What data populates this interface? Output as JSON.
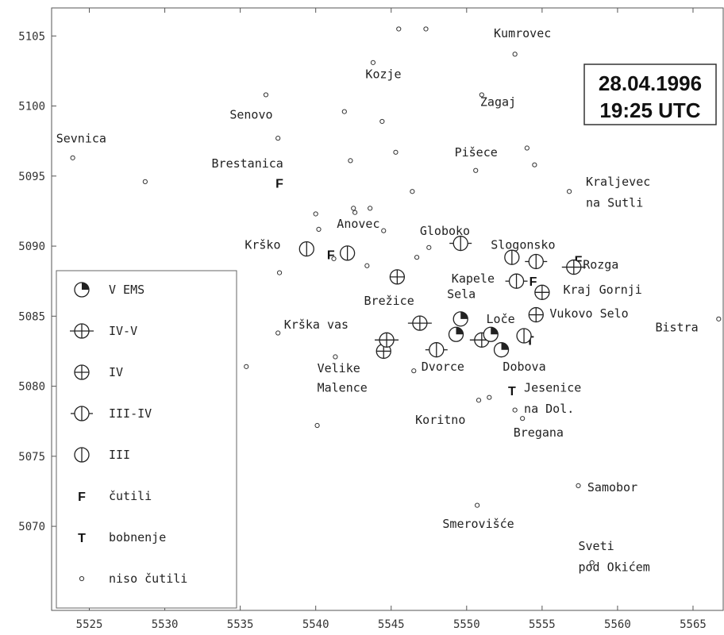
{
  "date_box": {
    "line1": "28.04.1996",
    "line2": "19:25 UTC"
  },
  "axes": {
    "x_range": [
      5522.5,
      5567
    ],
    "y_range": [
      5064,
      5107
    ],
    "x_ticks": [
      "5525",
      "5530",
      "5535",
      "5540",
      "5545",
      "5550",
      "5555",
      "5560",
      "5565"
    ],
    "y_ticks": [
      "5070",
      "5075",
      "5080",
      "5085",
      "5090",
      "5095",
      "5100",
      "5105"
    ]
  },
  "legend": {
    "items": [
      {
        "symbol": "V",
        "label": "V  EMS"
      },
      {
        "symbol": "IV-V",
        "label": "IV-V"
      },
      {
        "symbol": "IV",
        "label": "IV"
      },
      {
        "symbol": "III-IV",
        "label": "III-IV"
      },
      {
        "symbol": "III",
        "label": "III"
      },
      {
        "symbol": "F",
        "label": "čutili"
      },
      {
        "symbol": "T",
        "label": "bobnenje"
      },
      {
        "symbol": "N",
        "label": "niso čutili"
      }
    ]
  },
  "place_labels": [
    {
      "text": "Kumrovec",
      "x": 5551.8,
      "y": 5104.9
    },
    {
      "text": "Kozje",
      "x": 5543.3,
      "y": 5102.0
    },
    {
      "text": "Zagaj",
      "x": 5550.9,
      "y": 5100.0
    },
    {
      "text": "Senovo",
      "x": 5534.3,
      "y": 5099.1
    },
    {
      "text": "Sevnica",
      "x": 5522.8,
      "y": 5097.4
    },
    {
      "text": "Pišece",
      "x": 5549.2,
      "y": 5096.4
    },
    {
      "text": "Brestanica",
      "x": 5533.1,
      "y": 5095.6
    },
    {
      "text": "Kraljevec",
      "x": 5557.9,
      "y": 5094.3
    },
    {
      "text": "na Sutli",
      "x": 5557.9,
      "y": 5092.8
    },
    {
      "text": "Anovec",
      "x": 5541.4,
      "y": 5091.3
    },
    {
      "text": "Globoko",
      "x": 5546.9,
      "y": 5090.8
    },
    {
      "text": "Krško",
      "x": 5535.3,
      "y": 5089.8
    },
    {
      "text": "Slogonsko",
      "x": 5551.6,
      "y": 5089.8
    },
    {
      "text": "Rozga",
      "x": 5557.7,
      "y": 5088.4
    },
    {
      "text": "Kapele",
      "x": 5549.0,
      "y": 5087.4
    },
    {
      "text": "Kraj Gornji",
      "x": 5556.4,
      "y": 5086.6
    },
    {
      "text": "Sela",
      "x": 5548.7,
      "y": 5086.3
    },
    {
      "text": "Brežice",
      "x": 5543.2,
      "y": 5085.8
    },
    {
      "text": "Vukovo Selo",
      "x": 5555.5,
      "y": 5084.9
    },
    {
      "text": "Bistra",
      "x": 5562.5,
      "y": 5083.9
    },
    {
      "text": "Loče",
      "x": 5551.3,
      "y": 5084.5
    },
    {
      "text": "Krška vas",
      "x": 5537.9,
      "y": 5084.1
    },
    {
      "text": "Dvorce",
      "x": 5547.0,
      "y": 5081.1
    },
    {
      "text": "Dobova",
      "x": 5552.4,
      "y": 5081.1
    },
    {
      "text": "Velike",
      "x": 5540.1,
      "y": 5081.0
    },
    {
      "text": "Malence",
      "x": 5540.1,
      "y": 5079.6
    },
    {
      "text": "Jesenice",
      "x": 5553.8,
      "y": 5079.6
    },
    {
      "text": "na Dol.",
      "x": 5553.8,
      "y": 5078.1
    },
    {
      "text": "Koritno",
      "x": 5546.6,
      "y": 5077.3
    },
    {
      "text": "Bregana",
      "x": 5553.1,
      "y": 5076.4
    },
    {
      "text": "Samobor",
      "x": 5558.0,
      "y": 5072.5
    },
    {
      "text": "Smerovišće",
      "x": 5548.4,
      "y": 5069.9
    },
    {
      "text": "Sveti",
      "x": 5557.4,
      "y": 5068.3
    },
    {
      "text": "pod Okićem",
      "x": 5557.4,
      "y": 5066.8
    }
  ],
  "observations": [
    {
      "type": "N",
      "x": 5545.5,
      "y": 5105.5
    },
    {
      "type": "N",
      "x": 5547.3,
      "y": 5105.5
    },
    {
      "type": "N",
      "x": 5553.2,
      "y": 5103.7
    },
    {
      "type": "N",
      "x": 5543.8,
      "y": 5103.1
    },
    {
      "type": "N",
      "x": 5536.7,
      "y": 5100.8
    },
    {
      "type": "N",
      "x": 5551.0,
      "y": 5100.8
    },
    {
      "type": "N",
      "x": 5541.9,
      "y": 5099.6
    },
    {
      "type": "N",
      "x": 5544.4,
      "y": 5098.9
    },
    {
      "type": "N",
      "x": 5537.5,
      "y": 5097.7
    },
    {
      "type": "N",
      "x": 5523.9,
      "y": 5096.3
    },
    {
      "type": "N",
      "x": 5554.0,
      "y": 5097.0
    },
    {
      "type": "N",
      "x": 5545.3,
      "y": 5096.7
    },
    {
      "type": "N",
      "x": 5542.3,
      "y": 5096.1
    },
    {
      "type": "N",
      "x": 5554.5,
      "y": 5095.8
    },
    {
      "type": "N",
      "x": 5550.6,
      "y": 5095.4
    },
    {
      "type": "N",
      "x": 5528.7,
      "y": 5094.6
    },
    {
      "type": "N",
      "x": 5546.4,
      "y": 5093.9
    },
    {
      "type": "N",
      "x": 5556.8,
      "y": 5093.9
    },
    {
      "type": "N",
      "x": 5542.5,
      "y": 5092.7
    },
    {
      "type": "N",
      "x": 5542.6,
      "y": 5092.4
    },
    {
      "type": "N",
      "x": 5543.6,
      "y": 5092.7
    },
    {
      "type": "N",
      "x": 5540.0,
      "y": 5092.3
    },
    {
      "type": "N",
      "x": 5540.2,
      "y": 5091.2
    },
    {
      "type": "N",
      "x": 5544.5,
      "y": 5091.1
    },
    {
      "type": "N",
      "x": 5547.5,
      "y": 5089.9
    },
    {
      "type": "N",
      "x": 5546.7,
      "y": 5089.2
    },
    {
      "type": "N",
      "x": 5537.6,
      "y": 5088.1
    },
    {
      "type": "N",
      "x": 5543.4,
      "y": 5088.6
    },
    {
      "type": "N",
      "x": 5541.2,
      "y": 5089.1
    },
    {
      "type": "N",
      "x": 5537.5,
      "y": 5083.8
    },
    {
      "type": "N",
      "x": 5566.7,
      "y": 5084.8
    },
    {
      "type": "N",
      "x": 5541.3,
      "y": 5082.1
    },
    {
      "type": "N",
      "x": 5535.4,
      "y": 5081.4
    },
    {
      "type": "N",
      "x": 5546.5,
      "y": 5081.1
    },
    {
      "type": "N",
      "x": 5550.8,
      "y": 5079.0
    },
    {
      "type": "N",
      "x": 5551.5,
      "y": 5079.2
    },
    {
      "type": "N",
      "x": 5553.2,
      "y": 5078.3
    },
    {
      "type": "N",
      "x": 5553.7,
      "y": 5077.7
    },
    {
      "type": "N",
      "x": 5540.1,
      "y": 5077.2
    },
    {
      "type": "N",
      "x": 5557.4,
      "y": 5072.9
    },
    {
      "type": "N",
      "x": 5550.7,
      "y": 5071.5
    },
    {
      "type": "N",
      "x": 5558.3,
      "y": 5067.4
    },
    {
      "type": "F",
      "x": 5537.6,
      "y": 5094.5
    },
    {
      "type": "F",
      "x": 5541.0,
      "y": 5089.4
    },
    {
      "type": "F",
      "x": 5557.4,
      "y": 5089.0
    },
    {
      "type": "F",
      "x": 5554.4,
      "y": 5087.5
    },
    {
      "type": "T",
      "x": 5554.2,
      "y": 5083.3
    },
    {
      "type": "T",
      "x": 5553.0,
      "y": 5079.7
    },
    {
      "type": "III",
      "x": 5539.4,
      "y": 5089.8
    },
    {
      "type": "III",
      "x": 5542.1,
      "y": 5089.5
    },
    {
      "type": "III",
      "x": 5553.0,
      "y": 5089.2
    },
    {
      "type": "III",
      "x": 5553.8,
      "y": 5083.6
    },
    {
      "type": "III-IV",
      "x": 5549.6,
      "y": 5090.2
    },
    {
      "type": "III-IV",
      "x": 5554.6,
      "y": 5088.9
    },
    {
      "type": "III-IV",
      "x": 5553.3,
      "y": 5087.5
    },
    {
      "type": "III-IV",
      "x": 5548.0,
      "y": 5082.6
    },
    {
      "type": "IV",
      "x": 5545.4,
      "y": 5087.8
    },
    {
      "type": "IV",
      "x": 5555.0,
      "y": 5086.7
    },
    {
      "type": "IV",
      "x": 5554.6,
      "y": 5085.1
    },
    {
      "type": "IV",
      "x": 5544.5,
      "y": 5082.5
    },
    {
      "type": "IV-V",
      "x": 5557.1,
      "y": 5088.5
    },
    {
      "type": "IV-V",
      "x": 5546.9,
      "y": 5084.5
    },
    {
      "type": "IV-V",
      "x": 5544.7,
      "y": 5083.3
    },
    {
      "type": "IV-V",
      "x": 5551.0,
      "y": 5083.3
    },
    {
      "type": "V",
      "x": 5549.6,
      "y": 5084.8
    },
    {
      "type": "V",
      "x": 5549.3,
      "y": 5083.7
    },
    {
      "type": "V",
      "x": 5551.6,
      "y": 5083.7
    },
    {
      "type": "V",
      "x": 5552.3,
      "y": 5082.6
    }
  ]
}
